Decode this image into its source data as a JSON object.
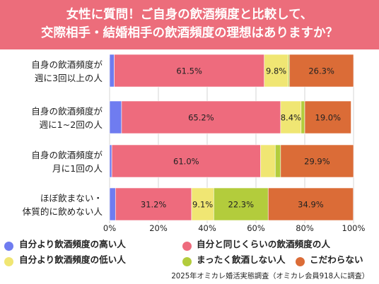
{
  "title": {
    "line1": "女性に質問！ご自身の飲酒頻度と比較して、",
    "line2": "交際相手・結婚相手の飲酒頻度の理想はありますか？"
  },
  "colors": {
    "title_bg": "#ec6d7b",
    "higher": "#6f7cf0",
    "same": "#ee6b7d",
    "lower": "#f0e673",
    "none": "#b3cc3c",
    "nopref": "#db6c37"
  },
  "chart_data": {
    "type": "bar",
    "orientation": "horizontal",
    "stacked": "percent",
    "categories": [
      [
        "自身の飲酒頻度が",
        "週に3回以上の人"
      ],
      [
        "自身の飲酒頻度が",
        "週に1~2回の人"
      ],
      [
        "自身の飲酒頻度が",
        "月に1回の人"
      ],
      [
        "ほぼ飲まない・",
        "体質的に飲めない人"
      ]
    ],
    "series": [
      {
        "name": "自分より飲酒頻度の高い人",
        "color": "#6f7cf0",
        "values": [
          1.9,
          4.9,
          0.9,
          2.4
        ],
        "labels": [
          "",
          "",
          "",
          ""
        ]
      },
      {
        "name": "自分と同じくらいの飲酒頻度の人",
        "color": "#ee6b7d",
        "values": [
          61.5,
          65.2,
          61.0,
          31.2
        ],
        "labels": [
          "61.5%",
          "65.2%",
          "61.0%",
          "31.2%"
        ]
      },
      {
        "name": "自分より飲酒頻度の低い人",
        "color": "#f0e673",
        "values": [
          9.8,
          8.4,
          6.0,
          9.1
        ],
        "labels": [
          "9.8%",
          "8.4%",
          "",
          "9.1%"
        ]
      },
      {
        "name": "まったく飲酒しない人",
        "color": "#b3cc3c",
        "values": [
          0.5,
          1.5,
          2.2,
          22.3
        ],
        "labels": [
          "",
          "",
          "",
          "22.3%"
        ]
      },
      {
        "name": "こだわらない",
        "color": "#db6c37",
        "values": [
          26.3,
          19.0,
          29.9,
          34.9
        ],
        "labels": [
          "26.3%",
          "19.0%",
          "29.9%",
          "34.9%"
        ]
      }
    ],
    "x_ticks": [
      "0%",
      "20%",
      "40%",
      "60%",
      "80%",
      "100%"
    ],
    "xlim": [
      0,
      100
    ],
    "grid": true,
    "legend": "bottom"
  },
  "source": "2025年オミカレ婚活実態調査（オミカレ会員918人に調査）"
}
